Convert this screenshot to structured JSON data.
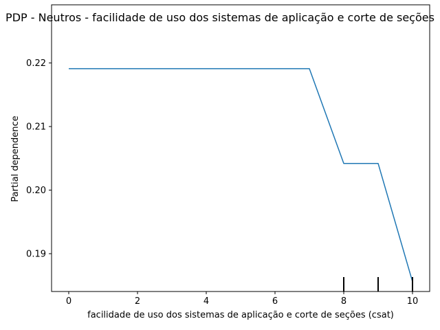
{
  "chart_data": {
    "type": "line",
    "title": "PDP - Neutros - facilidade de uso dos sistemas de aplicação e corte de seções",
    "xlabel": "facilidade de uso dos sistemas de aplicação e corte de seções (csat)",
    "ylabel": "Partial dependence",
    "xlim": [
      -0.5,
      10.5
    ],
    "ylim": [
      0.18405,
      0.22915
    ],
    "x_ticks": [
      0,
      2,
      4,
      6,
      8,
      10
    ],
    "x_tick_labels": [
      "0",
      "2",
      "4",
      "6",
      "8",
      "10"
    ],
    "y_ticks": [
      0.19,
      0.2,
      0.21,
      0.22
    ],
    "y_tick_labels": [
      "0.19",
      "0.20",
      "0.21",
      "0.22"
    ],
    "grid": false,
    "series": [
      {
        "color": "#1f77b4",
        "x": [
          0,
          1,
          2,
          3,
          4,
          5,
          6,
          7,
          8,
          9,
          10
        ],
        "y": [
          0.2191,
          0.2191,
          0.2191,
          0.2191,
          0.2191,
          0.2191,
          0.2191,
          0.2191,
          0.2042,
          0.2042,
          0.1856
        ]
      }
    ],
    "rug": {
      "color": "#000000",
      "x": [
        8,
        9,
        10
      ]
    }
  }
}
